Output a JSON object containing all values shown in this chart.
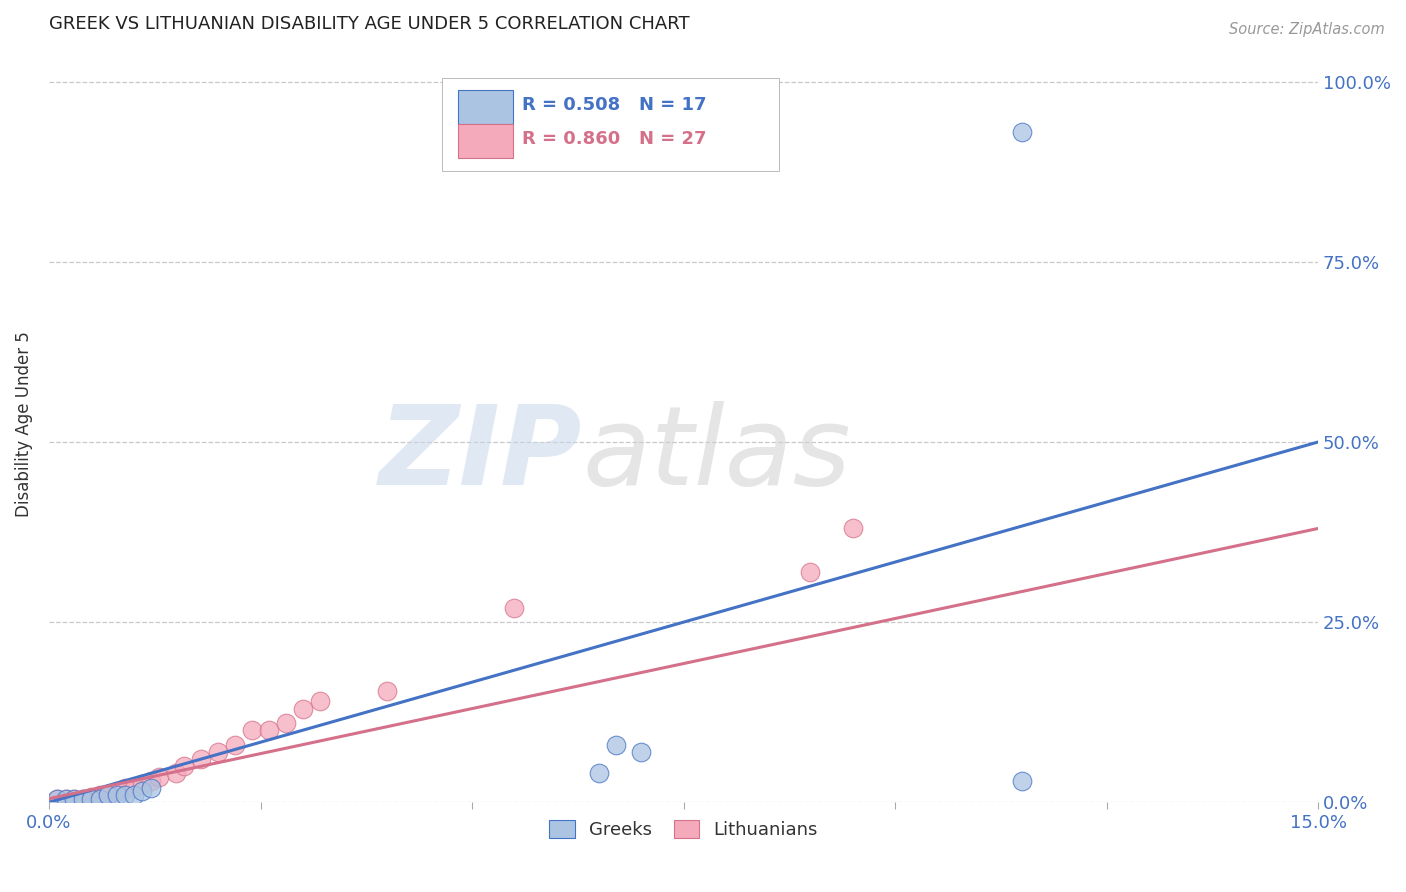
{
  "title": "GREEK VS LITHUANIAN DISABILITY AGE UNDER 5 CORRELATION CHART",
  "source": "Source: ZipAtlas.com",
  "ylabel": "Disability Age Under 5",
  "xlim": [
    0.0,
    0.15
  ],
  "ylim": [
    0.0,
    1.05
  ],
  "ytick_labels": [
    "0.0%",
    "25.0%",
    "50.0%",
    "75.0%",
    "100.0%"
  ],
  "ytick_positions": [
    0.0,
    0.25,
    0.5,
    0.75,
    1.0
  ],
  "greek_color": "#aac4e2",
  "greek_line_color": "#4472c4",
  "lithuanian_color": "#f5aabb",
  "lithuanian_line_color": "#d4708a",
  "greek_R": 0.508,
  "greek_N": 17,
  "lithuanian_R": 0.86,
  "lithuanian_N": 27,
  "background_color": "#ffffff",
  "grid_color": "#c8c8c8",
  "tick_color": "#4472c4",
  "greek_scatter_x": [
    0.001,
    0.002,
    0.003,
    0.004,
    0.005,
    0.006,
    0.007,
    0.008,
    0.009,
    0.01,
    0.011,
    0.012,
    0.065,
    0.067,
    0.07,
    0.115,
    0.115
  ],
  "greek_scatter_y": [
    0.005,
    0.005,
    0.005,
    0.005,
    0.005,
    0.005,
    0.01,
    0.01,
    0.01,
    0.01,
    0.015,
    0.02,
    0.04,
    0.08,
    0.07,
    0.03,
    0.93
  ],
  "lithuanian_scatter_x": [
    0.001,
    0.002,
    0.003,
    0.004,
    0.005,
    0.006,
    0.007,
    0.008,
    0.009,
    0.01,
    0.011,
    0.012,
    0.013,
    0.015,
    0.016,
    0.018,
    0.02,
    0.022,
    0.024,
    0.026,
    0.028,
    0.03,
    0.032,
    0.04,
    0.055,
    0.09,
    0.095
  ],
  "lithuanian_scatter_y": [
    0.005,
    0.005,
    0.005,
    0.005,
    0.008,
    0.01,
    0.01,
    0.015,
    0.02,
    0.02,
    0.025,
    0.03,
    0.035,
    0.04,
    0.05,
    0.06,
    0.07,
    0.08,
    0.1,
    0.1,
    0.11,
    0.13,
    0.14,
    0.155,
    0.27,
    0.32,
    0.38
  ],
  "greek_line_x": [
    0.0,
    0.15
  ],
  "greek_line_y": [
    0.0,
    0.5
  ],
  "lithuanian_line_x": [
    0.0,
    0.15
  ],
  "lithuanian_line_y": [
    0.005,
    0.38
  ]
}
